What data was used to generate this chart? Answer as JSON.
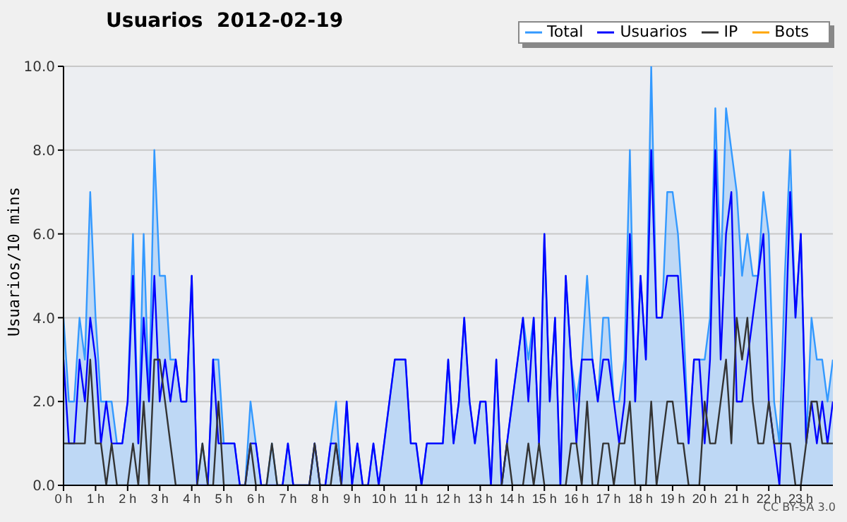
{
  "chart_data": {
    "type": "line",
    "title": "Usuarios  2012-02-19",
    "ylabel": "Usuarios/10 mins",
    "annotations": [
      "CC BY-SA 3.0"
    ],
    "x": [
      0,
      0.167,
      0.333,
      0.5,
      0.667,
      0.833,
      1,
      1.167,
      1.333,
      1.5,
      1.667,
      1.833,
      2,
      2.167,
      2.333,
      2.5,
      2.667,
      2.833,
      3,
      3.167,
      3.333,
      3.5,
      3.667,
      3.833,
      4,
      4.167,
      4.333,
      4.5,
      4.667,
      4.833,
      5,
      5.167,
      5.333,
      5.5,
      5.667,
      5.833,
      6,
      6.167,
      6.333,
      6.5,
      6.667,
      6.833,
      7,
      7.167,
      7.333,
      7.5,
      7.667,
      7.833,
      8,
      8.167,
      8.333,
      8.5,
      8.667,
      8.833,
      9,
      9.167,
      9.333,
      9.5,
      9.667,
      9.833,
      10,
      10.167,
      10.333,
      10.5,
      10.667,
      10.833,
      11,
      11.167,
      11.333,
      11.5,
      11.667,
      11.833,
      12,
      12.167,
      12.333,
      12.5,
      12.667,
      12.833,
      13,
      13.167,
      13.333,
      13.5,
      13.667,
      13.833,
      14,
      14.167,
      14.333,
      14.5,
      14.667,
      14.833,
      15,
      15.167,
      15.333,
      15.5,
      15.667,
      15.833,
      16,
      16.167,
      16.333,
      16.5,
      16.667,
      16.833,
      17,
      17.167,
      17.333,
      17.5,
      17.667,
      17.833,
      18,
      18.167,
      18.333,
      18.5,
      18.667,
      18.833,
      19,
      19.167,
      19.333,
      19.5,
      19.667,
      19.833,
      20,
      20.167,
      20.333,
      20.5,
      20.667,
      20.833,
      21,
      21.167,
      21.333,
      21.5,
      21.667,
      21.833,
      22,
      22.167,
      22.333,
      22.5,
      22.667,
      22.833,
      23,
      23.167,
      23.333,
      23.5,
      23.667,
      23.833,
      24
    ],
    "series": [
      {
        "name": "Total",
        "type": "area",
        "color": "#3399ff",
        "values": [
          4,
          2,
          2,
          4,
          3,
          7,
          4,
          2,
          2,
          2,
          1,
          1,
          2,
          6,
          1,
          6,
          2,
          8,
          5,
          5,
          3,
          3,
          2,
          2,
          5,
          0,
          1,
          0,
          3,
          3,
          1,
          1,
          1,
          0,
          0,
          2,
          1,
          0,
          0,
          1,
          0,
          0,
          1,
          0,
          0,
          0,
          0,
          1,
          0,
          0,
          1,
          2,
          0,
          2,
          0,
          1,
          0,
          0,
          1,
          0,
          1,
          2,
          3,
          3,
          3,
          1,
          1,
          0,
          1,
          1,
          1,
          1,
          3,
          1,
          2,
          4,
          2,
          1,
          2,
          2,
          0,
          3,
          0,
          1,
          2,
          3,
          4,
          3,
          4,
          1,
          6,
          2,
          4,
          0,
          5,
          3,
          2,
          3,
          5,
          3,
          2,
          4,
          4,
          2,
          2,
          3,
          8,
          2,
          5,
          3,
          10,
          4,
          4,
          7,
          7,
          6,
          4,
          1,
          3,
          3,
          3,
          4,
          9,
          5,
          9,
          8,
          7,
          5,
          6,
          5,
          5,
          7,
          6,
          2,
          1,
          5,
          8,
          4,
          6,
          1,
          4,
          3,
          3,
          2,
          3
        ]
      },
      {
        "name": "Usuarios",
        "type": "line",
        "color": "#0000ff",
        "values": [
          3,
          1,
          1,
          3,
          2,
          4,
          3,
          1,
          2,
          1,
          1,
          1,
          2,
          5,
          1,
          4,
          2,
          5,
          2,
          3,
          2,
          3,
          2,
          2,
          5,
          0,
          0,
          0,
          3,
          1,
          1,
          1,
          1,
          0,
          0,
          1,
          1,
          0,
          0,
          0,
          0,
          0,
          1,
          0,
          0,
          0,
          0,
          1,
          0,
          0,
          1,
          1,
          0,
          2,
          0,
          1,
          0,
          0,
          1,
          0,
          1,
          2,
          3,
          3,
          3,
          1,
          1,
          0,
          1,
          1,
          1,
          1,
          3,
          1,
          2,
          4,
          2,
          1,
          2,
          2,
          0,
          3,
          0,
          1,
          2,
          3,
          4,
          2,
          4,
          1,
          6,
          2,
          4,
          0,
          5,
          3,
          1,
          3,
          3,
          3,
          2,
          3,
          3,
          2,
          1,
          2,
          6,
          2,
          5,
          3,
          8,
          4,
          4,
          5,
          5,
          5,
          3,
          1,
          3,
          3,
          1,
          3,
          8,
          3,
          6,
          7,
          2,
          2,
          3,
          4,
          5,
          6,
          2,
          1,
          0,
          3,
          7,
          4,
          6,
          1,
          2,
          1,
          2,
          1,
          2
        ]
      },
      {
        "name": "IP",
        "type": "line",
        "color": "#333333",
        "values": [
          1,
          1,
          1,
          1,
          1,
          3,
          1,
          1,
          0,
          1,
          0,
          0,
          0,
          1,
          0,
          2,
          0,
          3,
          3,
          2,
          1,
          0,
          0,
          0,
          0,
          0,
          1,
          0,
          0,
          2,
          0,
          0,
          0,
          0,
          0,
          1,
          0,
          0,
          0,
          1,
          0,
          0,
          0,
          0,
          0,
          0,
          0,
          1,
          0,
          0,
          0,
          1,
          0,
          0,
          0,
          0,
          0,
          0,
          0,
          0,
          0,
          0,
          0,
          0,
          0,
          0,
          0,
          0,
          0,
          0,
          0,
          0,
          0,
          0,
          0,
          0,
          0,
          0,
          0,
          0,
          0,
          0,
          0,
          1,
          0,
          0,
          0,
          1,
          0,
          1,
          0,
          0,
          0,
          0,
          0,
          1,
          1,
          0,
          2,
          0,
          0,
          1,
          1,
          0,
          1,
          1,
          2,
          0,
          0,
          0,
          2,
          0,
          1,
          2,
          2,
          1,
          1,
          0,
          0,
          0,
          2,
          1,
          1,
          2,
          3,
          1,
          4,
          3,
          4,
          2,
          1,
          1,
          2,
          1,
          1,
          1,
          1,
          0,
          0,
          1,
          2,
          2,
          1,
          1,
          1
        ]
      },
      {
        "name": "Bots",
        "type": "line",
        "color": "#ffa500",
        "values": [
          null,
          null,
          null,
          null,
          null,
          null,
          null,
          null,
          null,
          null,
          null,
          null,
          null,
          null,
          null,
          null,
          null,
          null,
          null,
          null,
          null,
          null,
          null,
          null,
          null,
          null,
          null,
          null,
          null,
          null,
          null,
          null,
          null,
          null,
          null,
          null,
          null,
          null,
          null,
          null,
          null,
          null,
          null,
          null,
          null,
          null,
          null,
          null,
          null,
          null,
          null,
          null,
          null,
          null,
          null,
          null,
          null,
          null,
          null,
          null,
          null,
          null,
          null,
          null,
          null,
          null,
          null,
          null,
          null,
          null,
          null,
          null,
          null,
          null,
          null,
          null,
          null,
          null,
          null,
          null,
          null,
          null,
          null,
          null,
          null,
          null,
          null,
          null,
          null,
          null,
          null,
          null,
          null,
          null,
          null,
          null,
          null,
          null,
          null,
          null,
          null,
          null,
          null,
          null,
          null,
          null,
          null,
          null,
          null,
          null,
          null,
          null,
          null,
          null,
          null,
          null,
          null,
          null,
          null,
          null,
          null,
          null,
          null,
          null,
          null,
          null,
          null,
          null,
          null,
          null,
          null,
          null,
          null,
          null,
          null,
          null,
          null,
          null,
          null,
          null,
          null,
          null,
          null,
          null,
          null
        ]
      }
    ],
    "xlim": [
      0,
      24
    ],
    "xticks": [
      {
        "value": 0,
        "label": "0 h"
      },
      {
        "value": 1,
        "label": "1 h"
      },
      {
        "value": 2,
        "label": "2 h"
      },
      {
        "value": 3,
        "label": "3 h"
      },
      {
        "value": 4,
        "label": "4 h"
      },
      {
        "value": 5,
        "label": "5 h"
      },
      {
        "value": 6,
        "label": "6 h"
      },
      {
        "value": 7,
        "label": "7 h"
      },
      {
        "value": 8,
        "label": "8 h"
      },
      {
        "value": 9,
        "label": "9 h"
      },
      {
        "value": 10,
        "label": "10 h"
      },
      {
        "value": 11,
        "label": "11 h"
      },
      {
        "value": 12,
        "label": "12 h"
      },
      {
        "value": 13,
        "label": "13 h"
      },
      {
        "value": 14,
        "label": "14 h"
      },
      {
        "value": 15,
        "label": "15 h"
      },
      {
        "value": 16,
        "label": "16 h"
      },
      {
        "value": 17,
        "label": "17 h"
      },
      {
        "value": 18,
        "label": "18 h"
      },
      {
        "value": 19,
        "label": "19 h"
      },
      {
        "value": 20,
        "label": "20 h"
      },
      {
        "value": 21,
        "label": "21 h"
      },
      {
        "value": 22,
        "label": "22 h"
      },
      {
        "value": 23,
        "label": "23 h"
      }
    ],
    "ylim": [
      0,
      10
    ],
    "yticks": [
      {
        "value": 0,
        "label": "0.0"
      },
      {
        "value": 2,
        "label": "2.0"
      },
      {
        "value": 4,
        "label": "4.0"
      },
      {
        "value": 6,
        "label": "6.0"
      },
      {
        "value": 8,
        "label": "8.0"
      },
      {
        "value": 10,
        "label": "10.0"
      }
    ],
    "grid": "y",
    "legend": "top right"
  }
}
